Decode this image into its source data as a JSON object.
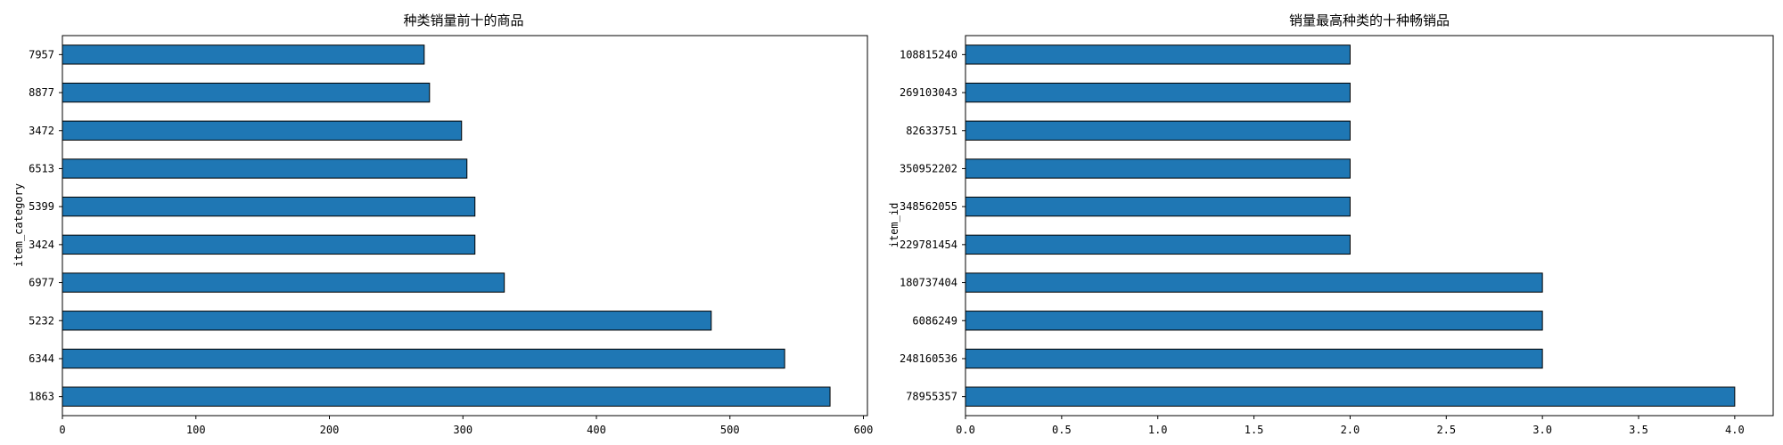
{
  "chart_data": [
    {
      "type": "bar",
      "orientation": "horizontal",
      "title": "种类销量前十的商品",
      "xlabel": "",
      "ylabel": "item_category",
      "categories": [
        "1863",
        "6344",
        "5232",
        "6977",
        "3424",
        "5399",
        "6513",
        "3472",
        "8877",
        "7957"
      ],
      "values": [
        575,
        541,
        486,
        331,
        309,
        309,
        303,
        299,
        275,
        271
      ],
      "xlim": [
        0,
        603
      ],
      "xticks": [
        0,
        100,
        200,
        300,
        400,
        500,
        600
      ],
      "xtick_labels": [
        "0",
        "100",
        "200",
        "300",
        "400",
        "500",
        "600"
      ],
      "grid": false,
      "bar_color": "#1f77b4",
      "edge_color": "#000000"
    },
    {
      "type": "bar",
      "orientation": "horizontal",
      "title": "销量最高种类的十种畅销品",
      "xlabel": "",
      "ylabel": "item_id",
      "categories": [
        "78955357",
        "248160536",
        "6086249",
        "180737404",
        "229781454",
        "348562055",
        "350952202",
        "82633751",
        "269103043",
        "108815240"
      ],
      "values": [
        4,
        3,
        3,
        3,
        2,
        2,
        2,
        2,
        2,
        2
      ],
      "xlim": [
        0,
        4.2
      ],
      "xticks": [
        0,
        0.5,
        1,
        1.5,
        2,
        2.5,
        3,
        3.5,
        4
      ],
      "xtick_labels": [
        "0.0",
        "0.5",
        "1.0",
        "1.5",
        "2.0",
        "2.5",
        "3.0",
        "3.5",
        "4.0"
      ],
      "grid": false,
      "bar_color": "#1f77b4",
      "edge_color": "#000000"
    }
  ]
}
